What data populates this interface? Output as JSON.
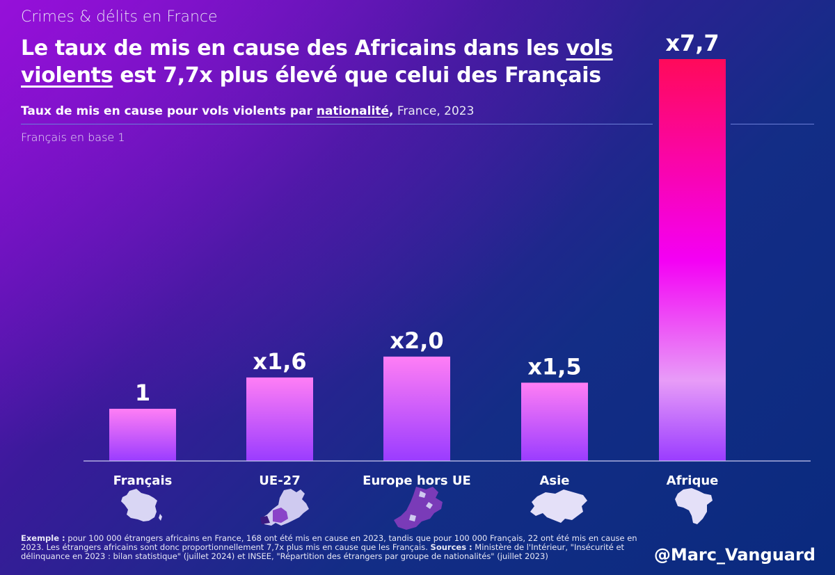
{
  "header": {
    "kicker": "Crimes & délits en France",
    "title_part1": "Le taux de mis en cause des Africains dans les ",
    "title_underlined1": "vols",
    "title_underlined2": "violents",
    "title_part2": " est 7,7x plus élevé que celui des Français"
  },
  "subtitle": {
    "bold_part": "Taux de mis en cause pour vols violents par ",
    "bold_underlined": "nationalité",
    "comma": ",",
    "normal_part": " France, 2023"
  },
  "base_note": "Français en base 1",
  "chart_data": {
    "type": "bar",
    "title": "Taux de mis en cause pour vols violents par nationalité, France, 2023",
    "ylabel": "Français en base 1",
    "categories": [
      "Français",
      "UE-27",
      "Europe hors UE",
      "Asie",
      "Afrique"
    ],
    "values": [
      1,
      1.6,
      2.0,
      1.5,
      7.7
    ],
    "data_labels": [
      "1",
      "x1,6",
      "x2,0",
      "x1,5",
      "x7,7"
    ],
    "ylim": [
      0,
      7.7
    ],
    "grid": false,
    "icons": [
      "france-map-icon",
      "eu-map-icon",
      "europe-map-icon",
      "asia-map-icon",
      "africa-map-icon"
    ],
    "colors": {
      "bar_top": "#ff7ef5",
      "bar_bottom": "#9a3cff",
      "highlight_top": "#ff0a5a",
      "highlight_mid": "#f400f4",
      "axis": "#c9c9f0"
    }
  },
  "footer": {
    "example_label": "Exemple :",
    "example_text": " pour 100 000 étrangers africains en France, 168 ont été mis en cause en 2023, tandis que pour 100 000 Français, 22 ont été mis en cause en 2023. Les étrangers africains sont donc proportionnellement 7,7x plus mis en cause que les Français. ",
    "sources_label": "Sources :",
    "sources_text": " Ministère de l'Intérieur, \"Insécurité et délinquance en 2023 : bilan statistique\" (juillet 2024) et INSEE, \"Répartition des étrangers par groupe de nationalités\" (juillet 2023)",
    "handle": "@Marc_Vanguard"
  }
}
